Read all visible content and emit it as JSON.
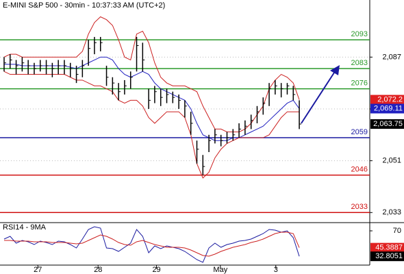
{
  "chart_data": [
    {
      "type": "ohlc",
      "title": "E-MINI S&P 500 - 30min - 10:37:33 AM (UTC+2)",
      "high": [
        2087,
        2088,
        2086,
        2087,
        2086,
        2085,
        2086,
        2086,
        2085,
        2086,
        2086,
        2085,
        2084,
        2086,
        2093,
        2094,
        2094,
        2084,
        2080,
        2078,
        2079,
        2082,
        2094,
        2092,
        2076,
        2077,
        2076,
        2076,
        2075,
        2074,
        2072,
        2068,
        2058,
        2053,
        2060,
        2062,
        2060,
        2061,
        2062,
        2064,
        2065,
        2067,
        2070,
        2073,
        2078,
        2079,
        2078,
        2078,
        2077,
        2072
      ],
      "low": [
        2082,
        2083,
        2081,
        2082,
        2081,
        2081,
        2082,
        2081,
        2080,
        2081,
        2081,
        2080,
        2078,
        2080,
        2084,
        2088,
        2089,
        2077,
        2074,
        2072,
        2074,
        2076,
        2082,
        2082,
        2069,
        2071,
        2070,
        2071,
        2071,
        2069,
        2066,
        2060,
        2050,
        2046,
        2054,
        2057,
        2056,
        2057,
        2058,
        2059,
        2060,
        2062,
        2064,
        2067,
        2070,
        2074,
        2073,
        2074,
        2072,
        2062
      ],
      "close": [
        2085,
        2086,
        2084,
        2085,
        2084,
        2083,
        2084,
        2084,
        2083,
        2084,
        2084,
        2083,
        2081,
        2084,
        2090,
        2092,
        2092,
        2080,
        2078,
        2075,
        2077,
        2080,
        2091,
        2086,
        2072,
        2075,
        2073,
        2074,
        2073,
        2072,
        2070,
        2064,
        2055,
        2049,
        2058,
        2060,
        2058,
        2059,
        2060,
        2062,
        2063,
        2065,
        2068,
        2071,
        2076,
        2077,
        2076,
        2077,
        2074,
        2063.75
      ],
      "overlays": [
        {
          "color": "#cc2020",
          "values": [
            2087,
            2088,
            2088,
            2087,
            2087,
            2087,
            2087,
            2087,
            2087,
            2087,
            2087,
            2087,
            2087,
            2089,
            2095,
            2099,
            2101,
            2100,
            2098,
            2093,
            2087,
            2086,
            2095,
            2096,
            2092,
            2085,
            2080,
            2078,
            2077,
            2077,
            2077,
            2076,
            2075,
            2070,
            2066,
            2062,
            2062,
            2061,
            2061,
            2061,
            2062,
            2064,
            2067,
            2070,
            2076,
            2079,
            2081,
            2080,
            2078,
            2072.2
          ]
        },
        {
          "color": "#2020c0",
          "values": [
            2084.5,
            2084.5,
            2084.5,
            2084,
            2084,
            2084,
            2084,
            2084,
            2084,
            2084,
            2084,
            2083.5,
            2083,
            2084,
            2085,
            2086,
            2087,
            2087,
            2086,
            2083,
            2081,
            2080,
            2081,
            2082,
            2081,
            2078,
            2076,
            2075,
            2074,
            2073,
            2072,
            2069,
            2064,
            2060,
            2059,
            2058,
            2058,
            2058,
            2059,
            2059,
            2060,
            2061,
            2062,
            2063,
            2065,
            2067,
            2069,
            2071,
            2072,
            2069.11
          ]
        },
        {
          "color": "#cc2020",
          "values": [
            2082,
            2081,
            2081,
            2081,
            2081,
            2081,
            2081,
            2081,
            2081,
            2081,
            2081,
            2080,
            2079,
            2079,
            2078,
            2077,
            2077,
            2076,
            2075,
            2072,
            2071,
            2072,
            2072,
            2070,
            2066,
            2064,
            2066,
            2068,
            2068,
            2068,
            2066,
            2060,
            2050,
            2045,
            2047,
            2052,
            2055,
            2057,
            2058,
            2059,
            2059,
            2059,
            2059,
            2059,
            2060,
            2063,
            2066,
            2068,
            2068,
            2068
          ]
        }
      ],
      "levels": [
        {
          "value": 2093,
          "color": "#2a9a2a"
        },
        {
          "value": 2083,
          "color": "#2a9a2a"
        },
        {
          "value": 2076,
          "color": "#2a9a2a"
        },
        {
          "value": 2059,
          "color": "#1a1aa0"
        },
        {
          "value": 2046,
          "color": "#d01010"
        },
        {
          "value": 2033,
          "color": "#d01010"
        }
      ],
      "markers": [
        {
          "value": 2072.2,
          "label": "2,072.2",
          "color": "#e02020"
        },
        {
          "value": 2069.11,
          "label": "2,069.11",
          "color": "#2020c0"
        },
        {
          "value": 2063.75,
          "label": "2,063.75",
          "color": "#000000"
        }
      ],
      "ylim": [
        2029.5,
        2103.5
      ],
      "yticks": [
        {
          "value": 2087,
          "label": "2,087"
        },
        {
          "value": 2069,
          "label": "2,069"
        },
        {
          "value": 2051,
          "label": "2,051"
        },
        {
          "value": 2033,
          "label": "2,033"
        }
      ],
      "xlim": [
        -0.68,
        60.7
      ],
      "xticks": [
        {
          "value": 5.6,
          "label": "27"
        },
        {
          "value": 15.6,
          "label": "28"
        },
        {
          "value": 25.3,
          "label": "29"
        },
        {
          "value": 35.9,
          "label": "May"
        },
        {
          "value": 45.1,
          "label": "3"
        }
      ],
      "grid": true
    },
    {
      "type": "line",
      "title": "RSI14 - 9MA",
      "series": [
        {
          "color": "#1a1aa0",
          "values": [
            58,
            62,
            52,
            56,
            54,
            50,
            55,
            53,
            50,
            55,
            54,
            50,
            45,
            58,
            72,
            76,
            74,
            45,
            44,
            40,
            46,
            52,
            72,
            62,
            38,
            48,
            44,
            48,
            46,
            44,
            40,
            34,
            28,
            24,
            45,
            52,
            46,
            50,
            52,
            55,
            56,
            58,
            62,
            66,
            72,
            71,
            68,
            70,
            60,
            32.8051
          ]
        },
        {
          "color": "#cc2020",
          "values": [
            56,
            56,
            55,
            55,
            55,
            54,
            54,
            54,
            53,
            53,
            53,
            52,
            51,
            52,
            56,
            60,
            64,
            62,
            58,
            53,
            50,
            49,
            54,
            56,
            53,
            50,
            48,
            46,
            46,
            46,
            45,
            42,
            38,
            34,
            33,
            36,
            40,
            43,
            46,
            48,
            50,
            53,
            55,
            58,
            62,
            66,
            68,
            68,
            66,
            45.3887
          ]
        }
      ],
      "markers": [
        {
          "value": 45.3887,
          "label": "45.3887",
          "color": "#e02020"
        },
        {
          "value": 32.8051,
          "label": "32.8051",
          "color": "#000000"
        }
      ],
      "ylim": [
        20,
        82
      ],
      "yticks": [
        70
      ],
      "xlim": [
        -0.68,
        60.7
      ]
    }
  ]
}
